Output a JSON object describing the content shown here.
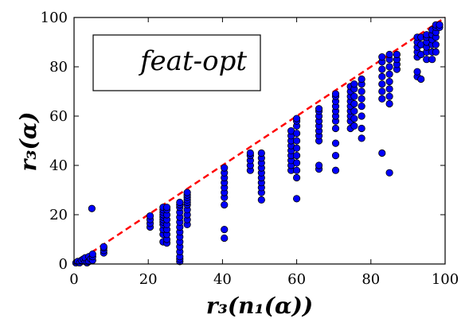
{
  "chart_data": {
    "type": "scatter",
    "title": "",
    "xlabel": "r₃(n₁(α))",
    "ylabel": "r₃(α)",
    "xlim": [
      0,
      100
    ],
    "ylim": [
      0,
      100
    ],
    "x_ticks": [
      "0",
      "20",
      "40",
      "60",
      "80",
      "100"
    ],
    "y_ticks": [
      "0",
      "20",
      "40",
      "60",
      "80",
      "100"
    ],
    "grid": false,
    "legend_box_text": "feat-opt",
    "legend_position": "top-left",
    "marker_color": "#0000ff",
    "marker_edge_color": "#000000",
    "reference_line": {
      "style": "dashed",
      "color": "#ff0000",
      "from": [
        0,
        0
      ],
      "to": [
        100,
        100
      ]
    },
    "series": [
      {
        "points": [
          [
            0.5,
            0.5
          ],
          [
            1,
            1
          ],
          [
            1.5,
            0.5
          ],
          [
            2,
            1.5
          ],
          [
            2.5,
            2
          ],
          [
            3,
            1
          ],
          [
            3,
            2.5
          ],
          [
            3.5,
            0.5
          ],
          [
            4,
            1
          ],
          [
            4,
            3
          ],
          [
            4.5,
            2
          ],
          [
            5,
            1.5
          ],
          [
            5,
            3
          ],
          [
            5,
            4
          ],
          [
            4.8,
            22.5
          ],
          [
            8,
            4.5
          ],
          [
            8,
            5.5
          ],
          [
            8,
            6.5
          ],
          [
            8,
            7
          ],
          [
            20.5,
            15
          ],
          [
            20.5,
            16.5
          ],
          [
            20.5,
            18
          ],
          [
            20.5,
            19.5
          ],
          [
            24,
            9
          ],
          [
            24,
            12
          ],
          [
            24,
            14
          ],
          [
            24,
            16
          ],
          [
            24,
            17
          ],
          [
            24,
            18
          ],
          [
            24,
            19
          ],
          [
            24,
            20
          ],
          [
            24,
            21
          ],
          [
            24,
            22
          ],
          [
            24,
            23
          ],
          [
            25,
            8.5
          ],
          [
            25,
            10
          ],
          [
            25,
            12
          ],
          [
            25,
            14
          ],
          [
            25,
            16
          ],
          [
            25,
            18
          ],
          [
            25,
            20
          ],
          [
            25,
            22
          ],
          [
            25,
            23
          ],
          [
            28.5,
            1
          ],
          [
            28.5,
            2
          ],
          [
            28.5,
            3
          ],
          [
            28.5,
            5
          ],
          [
            28.5,
            7
          ],
          [
            28.5,
            9
          ],
          [
            28.5,
            11
          ],
          [
            28.5,
            13
          ],
          [
            28.5,
            15
          ],
          [
            28.5,
            17
          ],
          [
            28.5,
            19
          ],
          [
            28.5,
            21
          ],
          [
            28.5,
            23
          ],
          [
            28.5,
            24
          ],
          [
            28.5,
            25
          ],
          [
            30.5,
            16
          ],
          [
            30.5,
            18
          ],
          [
            30.5,
            20
          ],
          [
            30.5,
            22
          ],
          [
            30.5,
            24
          ],
          [
            30.5,
            25
          ],
          [
            30.5,
            26
          ],
          [
            30.5,
            27
          ],
          [
            30.5,
            28
          ],
          [
            30.5,
            29
          ],
          [
            40.5,
            10.5
          ],
          [
            40.5,
            14
          ],
          [
            40.5,
            24
          ],
          [
            40.5,
            27
          ],
          [
            40.5,
            29
          ],
          [
            40.5,
            31
          ],
          [
            40.5,
            33
          ],
          [
            40.5,
            35
          ],
          [
            40.5,
            37
          ],
          [
            40.5,
            39
          ],
          [
            47.5,
            38
          ],
          [
            47.5,
            40
          ],
          [
            47.5,
            42
          ],
          [
            47.5,
            44
          ],
          [
            47.5,
            45
          ],
          [
            50.5,
            26
          ],
          [
            50.5,
            29
          ],
          [
            50.5,
            31
          ],
          [
            50.5,
            33
          ],
          [
            50.5,
            35
          ],
          [
            50.5,
            37
          ],
          [
            50.5,
            39
          ],
          [
            50.5,
            41
          ],
          [
            50.5,
            43
          ],
          [
            50.5,
            45
          ],
          [
            58.5,
            38
          ],
          [
            58.5,
            40
          ],
          [
            58.5,
            42
          ],
          [
            58.5,
            44
          ],
          [
            58.5,
            46
          ],
          [
            58.5,
            48
          ],
          [
            58.5,
            50
          ],
          [
            58.5,
            52
          ],
          [
            58.5,
            54
          ],
          [
            60,
            26.5
          ],
          [
            60,
            35
          ],
          [
            60,
            38
          ],
          [
            60,
            41
          ],
          [
            60,
            44
          ],
          [
            60,
            47
          ],
          [
            60,
            50
          ],
          [
            60,
            53
          ],
          [
            60,
            56
          ],
          [
            60,
            58
          ],
          [
            60,
            59
          ],
          [
            66,
            38.5
          ],
          [
            66,
            40
          ],
          [
            66,
            50
          ],
          [
            66,
            52
          ],
          [
            66,
            54
          ],
          [
            66,
            56
          ],
          [
            66,
            58
          ],
          [
            66,
            60
          ],
          [
            66,
            62
          ],
          [
            66,
            63
          ],
          [
            70.5,
            38
          ],
          [
            70.5,
            44
          ],
          [
            70.5,
            49
          ],
          [
            70.5,
            55
          ],
          [
            70.5,
            58
          ],
          [
            70.5,
            60
          ],
          [
            70.5,
            62
          ],
          [
            70.5,
            64
          ],
          [
            70.5,
            66
          ],
          [
            70.5,
            68
          ],
          [
            70.5,
            69
          ],
          [
            74.5,
            55
          ],
          [
            74.5,
            58
          ],
          [
            74.5,
            60
          ],
          [
            74.5,
            62
          ],
          [
            74.5,
            64
          ],
          [
            74.5,
            66
          ],
          [
            74.5,
            68
          ],
          [
            74.5,
            70
          ],
          [
            74.5,
            72
          ],
          [
            75.5,
            56
          ],
          [
            75.5,
            59
          ],
          [
            75.5,
            62
          ],
          [
            75.5,
            65
          ],
          [
            75.5,
            68
          ],
          [
            75.5,
            71
          ],
          [
            75.5,
            73
          ],
          [
            77.5,
            51
          ],
          [
            77.5,
            55
          ],
          [
            77.5,
            60
          ],
          [
            77.5,
            64
          ],
          [
            77.5,
            67
          ],
          [
            77.5,
            70
          ],
          [
            77.5,
            73
          ],
          [
            77.5,
            75
          ],
          [
            83,
            45
          ],
          [
            83,
            67
          ],
          [
            83,
            70
          ],
          [
            83,
            73
          ],
          [
            83,
            76
          ],
          [
            83,
            79
          ],
          [
            83,
            82
          ],
          [
            83,
            84
          ],
          [
            85,
            37
          ],
          [
            85,
            65
          ],
          [
            85,
            68
          ],
          [
            85,
            71
          ],
          [
            85,
            74
          ],
          [
            85,
            77
          ],
          [
            85,
            80
          ],
          [
            85,
            83
          ],
          [
            85,
            85
          ],
          [
            87,
            79
          ],
          [
            87,
            81
          ],
          [
            87,
            83
          ],
          [
            87,
            85
          ],
          [
            92.5,
            76
          ],
          [
            92.5,
            78
          ],
          [
            92.5,
            84
          ],
          [
            92.5,
            86
          ],
          [
            92.5,
            88
          ],
          [
            92.5,
            90
          ],
          [
            92.5,
            92
          ],
          [
            93.5,
            75
          ],
          [
            93.5,
            85
          ],
          [
            93.5,
            89
          ],
          [
            93.5,
            92
          ],
          [
            95,
            83
          ],
          [
            95,
            86
          ],
          [
            95,
            88
          ],
          [
            95,
            90
          ],
          [
            95,
            92
          ],
          [
            95,
            93
          ],
          [
            96.5,
            83
          ],
          [
            96.5,
            86
          ],
          [
            96.5,
            89
          ],
          [
            96.5,
            91
          ],
          [
            96.5,
            93
          ],
          [
            96.5,
            95
          ],
          [
            97.5,
            86
          ],
          [
            97.5,
            89
          ],
          [
            97.5,
            92
          ],
          [
            97.5,
            94
          ],
          [
            97.5,
            96
          ],
          [
            97.5,
            97
          ],
          [
            98.5,
            96
          ],
          [
            98.5,
            97
          ]
        ]
      }
    ]
  }
}
